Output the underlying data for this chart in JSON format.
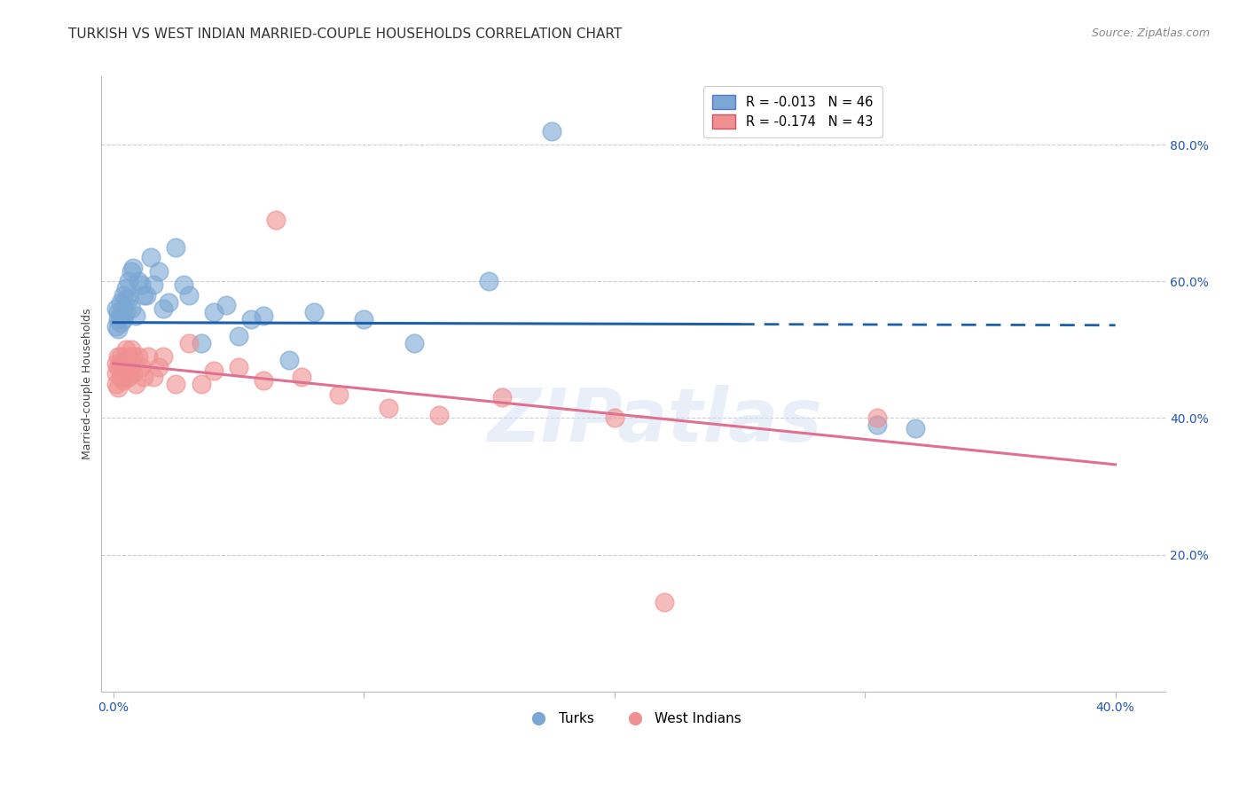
{
  "title": "TURKISH VS WEST INDIAN MARRIED-COUPLE HOUSEHOLDS CORRELATION CHART",
  "source": "Source: ZipAtlas.com",
  "ylabel_label": "Married-couple Households",
  "x_tick_labels": [
    "0.0%",
    "",
    "",
    "",
    "40.0%"
  ],
  "x_tick_values": [
    0.0,
    0.1,
    0.2,
    0.3,
    0.4
  ],
  "y_tick_labels": [
    "20.0%",
    "40.0%",
    "60.0%",
    "80.0%"
  ],
  "y_tick_values": [
    0.2,
    0.4,
    0.6,
    0.8
  ],
  "xlim": [
    -0.005,
    0.42
  ],
  "ylim": [
    0.0,
    0.9
  ],
  "legend_blue_label": "R = -0.013   N = 46",
  "legend_pink_label": "R = -0.174   N = 43",
  "legend_bottom_blue": "Turks",
  "legend_bottom_pink": "West Indians",
  "watermark": "ZIPatlas",
  "blue_color": "#7BA7D4",
  "pink_color": "#F09090",
  "blue_line_color": "#1E5FAA",
  "pink_line_color": "#E07090",
  "blue_line_solid_end": 0.25,
  "pink_line_solid_end": 0.4,
  "blue_intercept": 0.54,
  "blue_slope": -0.01,
  "pink_intercept": 0.48,
  "pink_slope": -0.37,
  "turks_x": [
    0.001,
    0.001,
    0.002,
    0.002,
    0.002,
    0.003,
    0.003,
    0.003,
    0.004,
    0.004,
    0.004,
    0.005,
    0.005,
    0.005,
    0.006,
    0.006,
    0.007,
    0.007,
    0.008,
    0.009,
    0.01,
    0.011,
    0.012,
    0.013,
    0.015,
    0.016,
    0.018,
    0.02,
    0.022,
    0.025,
    0.028,
    0.03,
    0.035,
    0.04,
    0.045,
    0.05,
    0.055,
    0.06,
    0.07,
    0.08,
    0.1,
    0.12,
    0.15,
    0.175,
    0.305,
    0.32
  ],
  "turks_y": [
    0.535,
    0.56,
    0.545,
    0.555,
    0.53,
    0.57,
    0.55,
    0.54,
    0.58,
    0.56,
    0.545,
    0.59,
    0.555,
    0.575,
    0.575,
    0.6,
    0.615,
    0.56,
    0.62,
    0.55,
    0.6,
    0.595,
    0.58,
    0.58,
    0.635,
    0.595,
    0.615,
    0.56,
    0.57,
    0.65,
    0.595,
    0.58,
    0.51,
    0.555,
    0.565,
    0.52,
    0.545,
    0.55,
    0.485,
    0.555,
    0.545,
    0.51,
    0.6,
    0.82,
    0.39,
    0.385
  ],
  "west_x": [
    0.001,
    0.001,
    0.001,
    0.002,
    0.002,
    0.002,
    0.003,
    0.003,
    0.003,
    0.004,
    0.004,
    0.004,
    0.005,
    0.005,
    0.006,
    0.006,
    0.007,
    0.007,
    0.008,
    0.008,
    0.009,
    0.01,
    0.011,
    0.012,
    0.014,
    0.016,
    0.018,
    0.02,
    0.025,
    0.03,
    0.035,
    0.04,
    0.05,
    0.06,
    0.065,
    0.075,
    0.09,
    0.11,
    0.13,
    0.155,
    0.2,
    0.22,
    0.305
  ],
  "west_y": [
    0.48,
    0.465,
    0.45,
    0.49,
    0.475,
    0.445,
    0.46,
    0.48,
    0.49,
    0.455,
    0.47,
    0.46,
    0.5,
    0.475,
    0.49,
    0.46,
    0.5,
    0.475,
    0.465,
    0.49,
    0.45,
    0.49,
    0.475,
    0.46,
    0.49,
    0.46,
    0.475,
    0.49,
    0.45,
    0.51,
    0.45,
    0.47,
    0.475,
    0.455,
    0.69,
    0.46,
    0.435,
    0.415,
    0.405,
    0.43,
    0.4,
    0.13,
    0.4
  ],
  "title_fontsize": 11,
  "axis_fontsize": 9,
  "tick_fontsize": 10,
  "source_fontsize": 9
}
